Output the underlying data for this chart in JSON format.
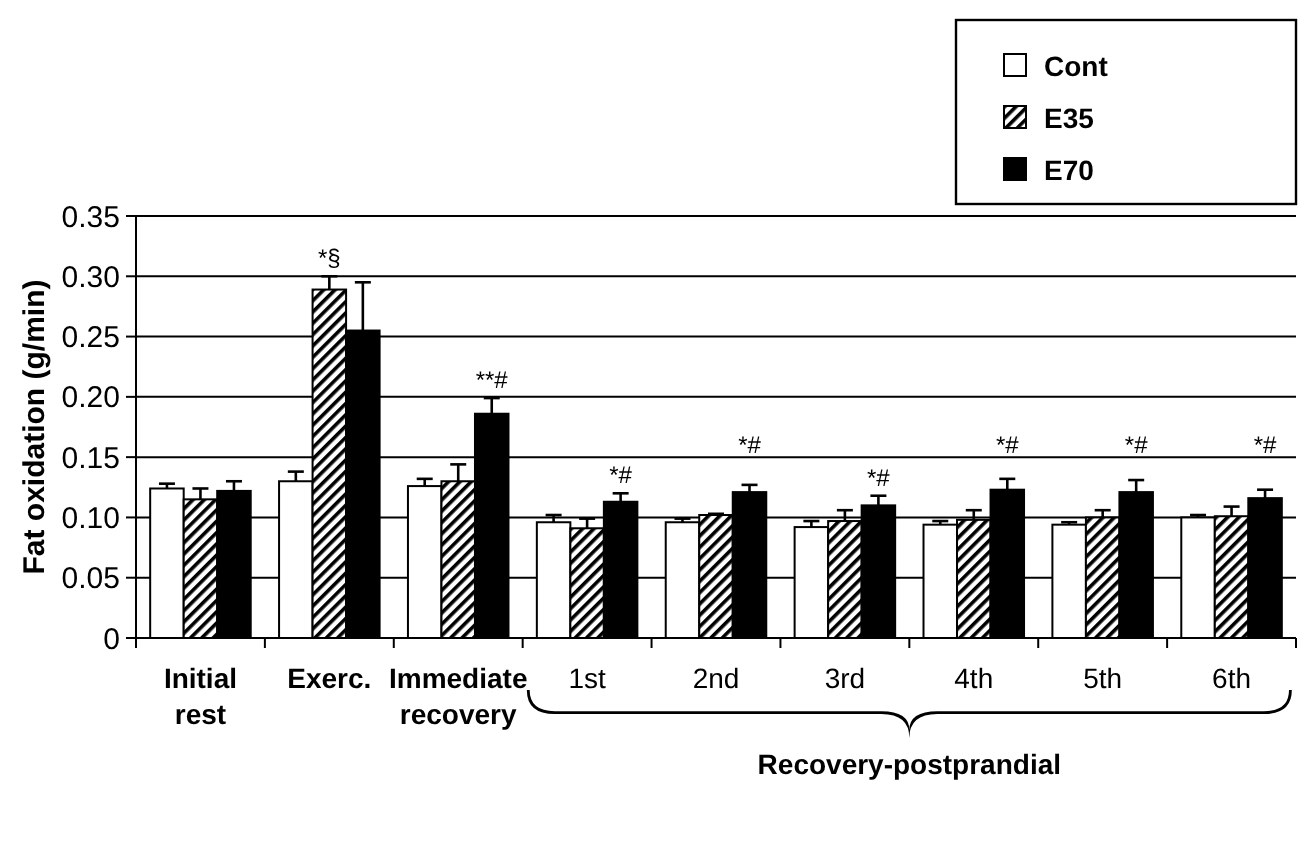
{
  "chart_data": {
    "type": "bar",
    "ylabel": "Fat oxidation (g/min)",
    "categories": [
      "Initial rest",
      "Exerc.",
      "Immediate recovery",
      "1st",
      "2nd",
      "3rd",
      "4th",
      "5th",
      "6th"
    ],
    "series": [
      {
        "name": "Cont",
        "color": "#ffffff",
        "values": [
          0.124,
          0.13,
          0.126,
          0.096,
          0.096,
          0.092,
          0.094,
          0.094,
          0.1
        ],
        "errors": [
          0.004,
          0.008,
          0.006,
          0.006,
          0.003,
          0.005,
          0.003,
          0.002,
          0.002
        ]
      },
      {
        "name": "E35",
        "color": "#000000",
        "values": [
          0.115,
          0.289,
          0.13,
          0.091,
          0.102,
          0.097,
          0.098,
          0.1,
          0.101
        ],
        "errors": [
          0.009,
          0.011,
          0.014,
          0.008,
          0.001,
          0.009,
          0.008,
          0.006,
          0.008
        ]
      },
      {
        "name": "E70",
        "color": "#000000",
        "values": [
          0.122,
          0.255,
          0.186,
          0.113,
          0.121,
          0.11,
          0.123,
          0.121,
          0.116
        ],
        "errors": [
          0.008,
          0.04,
          0.013,
          0.007,
          0.006,
          0.008,
          0.009,
          0.01,
          0.007
        ]
      }
    ],
    "ylim": [
      0,
      0.35
    ],
    "yticks": [
      0,
      {
        "value": 0.05,
        "label": "0.05"
      },
      {
        "value": 0.1,
        "label": "0.10"
      },
      {
        "value": 0.15,
        "label": "0.15"
      },
      {
        "value": 0.2,
        "label": "0.20"
      },
      {
        "value": 0.25,
        "label": "0.25"
      },
      {
        "value": 0.3,
        "label": "0.30"
      },
      {
        "value": 0.35,
        "label": "0.35"
      }
    ],
    "grid": "y",
    "legend": "top right",
    "annotations": [
      "*§",
      "**#",
      "*#",
      "*#",
      "*#",
      "*#",
      "*#",
      "*#",
      "Recovery-postprandial"
    ]
  }
}
